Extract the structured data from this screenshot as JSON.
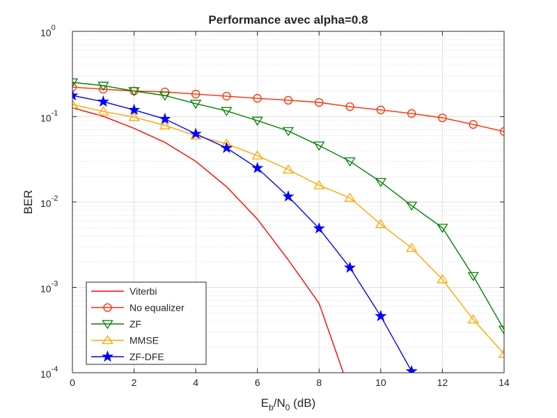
{
  "chart_data": {
    "type": "line",
    "title": "Performance avec alpha=0.8",
    "xlabel": {
      "base": "E",
      "sub1": "b",
      "mid": "/N",
      "sub2": "0",
      "tail": " (dB)"
    },
    "ylabel": "BER",
    "xlim": [
      0,
      14
    ],
    "ylim": [
      0.0001,
      1
    ],
    "yscale": "log",
    "grid": true,
    "x_ticks": [
      0,
      2,
      4,
      6,
      8,
      10,
      12,
      14
    ],
    "y_ticks": [
      {
        "base": "10",
        "exp": "0"
      },
      {
        "base": "10",
        "exp": "-1"
      },
      {
        "base": "10",
        "exp": "-2"
      },
      {
        "base": "10",
        "exp": "-3"
      },
      {
        "base": "10",
        "exp": "-4"
      }
    ],
    "legend_position": "bottom-left",
    "series": [
      {
        "name": "Viterbi",
        "color": "#ff0000",
        "marker": "none",
        "x": [
          0,
          1,
          2,
          3,
          4,
          5,
          6,
          7,
          8,
          9
        ],
        "y": [
          0.127,
          0.101,
          0.073,
          0.05,
          0.03,
          0.0151,
          0.0063,
          0.0021,
          0.00065,
          6e-05
        ]
      },
      {
        "name": "No equalizer",
        "color": "#ff2a00",
        "marker": "circle",
        "x": [
          0,
          1,
          2,
          3,
          4,
          5,
          6,
          7,
          8,
          9,
          10,
          11,
          12,
          13,
          14
        ],
        "y": [
          0.222,
          0.21,
          0.2,
          0.195,
          0.184,
          0.174,
          0.164,
          0.156,
          0.147,
          0.131,
          0.12,
          0.109,
          0.097,
          0.081,
          0.067
        ]
      },
      {
        "name": "ZF",
        "color": "#008000",
        "marker": "triangle-down",
        "x": [
          0,
          1,
          2,
          3,
          4,
          5,
          6,
          7,
          8,
          9,
          10,
          11,
          12,
          13,
          14
        ],
        "y": [
          0.253,
          0.231,
          0.2,
          0.177,
          0.142,
          0.117,
          0.09,
          0.068,
          0.046,
          0.03,
          0.0172,
          0.0091,
          0.005,
          0.00136,
          0.00032
        ]
      },
      {
        "name": "MMSE",
        "color": "#ffa500",
        "marker": "triangle-up",
        "x": [
          0,
          1,
          2,
          3,
          4,
          5,
          6,
          7,
          8,
          9,
          10,
          11,
          12,
          13,
          14
        ],
        "y": [
          0.139,
          0.115,
          0.099,
          0.079,
          0.06,
          0.048,
          0.035,
          0.024,
          0.0157,
          0.0112,
          0.0055,
          0.0029,
          0.00124,
          0.00042,
          0.000166
        ]
      },
      {
        "name": "ZF-DFE",
        "color": "#0000ff",
        "marker": "star",
        "x": [
          0,
          1,
          2,
          3,
          4,
          5,
          6,
          7,
          8,
          9,
          10,
          11
        ],
        "y": [
          0.177,
          0.15,
          0.12,
          0.094,
          0.063,
          0.043,
          0.025,
          0.0116,
          0.0049,
          0.0017,
          0.00046,
          0.000104
        ]
      }
    ]
  }
}
